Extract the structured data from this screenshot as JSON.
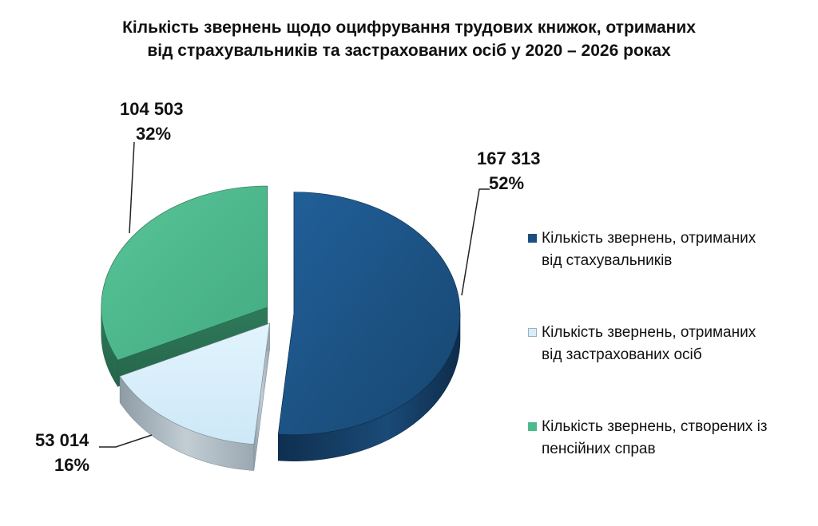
{
  "chart_data": {
    "type": "pie",
    "title_lines": [
      "Кількість звернень щодо оцифрування трудових книжок, отриманих",
      "від  страхувальників та застрахованих осіб у 2020 – 2026 роках"
    ],
    "slices": [
      {
        "name_lines": [
          "Кількість звернень, отриманих",
          "від стахувальників"
        ],
        "value": 167313,
        "value_label": "167 313",
        "percent_label": "52%",
        "color": "#1B4F80"
      },
      {
        "name_lines": [
          "Кількість звернень, отриманих",
          "від застрахованих осіб"
        ],
        "value": 53014,
        "value_label": "53 014",
        "percent_label": "16%",
        "color": "#D6EEFA"
      },
      {
        "name_lines": [
          "Кількість звернень, створених із",
          "пенсійних справ"
        ],
        "value": 104503,
        "value_label": "104 503",
        "percent_label": "32%",
        "color": "#4DBA8E"
      }
    ],
    "legend_position": "right",
    "exploded": true,
    "three_d": true
  }
}
